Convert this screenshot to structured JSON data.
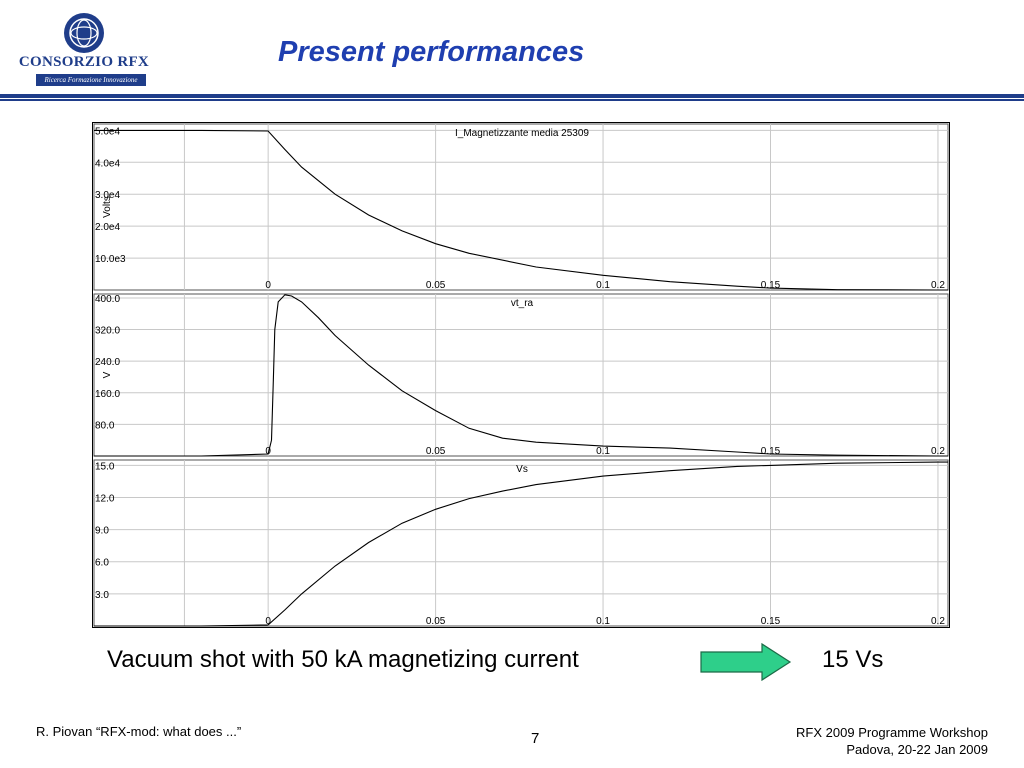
{
  "logo": {
    "name": "CONSORZIO RFX",
    "subtitle": "Ricerca Formazione Innovazione"
  },
  "slide": {
    "title": "Present performances",
    "caption": "Vacuum shot with 50 kA magnetizing current",
    "result": "15  Vs",
    "footer_left": "R. Piovan “RFX-mod: what does ...”",
    "page_number": "7",
    "footer_right_line1": "RFX 2009 Programme Workshop",
    "footer_right_line2": "Padova,  20-22 Jan 2009"
  },
  "colors": {
    "title": "#1f3fb0",
    "header_bar": "#1f3d8a",
    "arrow_fill": "#2ecf8a",
    "trace": "#000000",
    "grid": "#c8c8c8"
  },
  "chart_data": [
    {
      "type": "line",
      "title": "I_Magnetizzante media 25309",
      "ylabel": "Volts",
      "xlim": [
        -0.052,
        0.203
      ],
      "ylim": [
        0,
        52000
      ],
      "x_ticks": [
        0,
        0.05,
        0.1,
        0.15,
        0.2
      ],
      "x_tick_labels": [
        "0",
        "0.05",
        "0.1",
        "0.15",
        "0.2"
      ],
      "y_ticks": [
        10000,
        20000,
        30000,
        40000,
        50000
      ],
      "y_tick_labels": [
        "10.0e3",
        "2.0e4",
        "3.0e4",
        "4.0e4",
        "5.0e4"
      ],
      "grid": true,
      "x": [
        -0.052,
        -0.02,
        0,
        0.005,
        0.01,
        0.02,
        0.03,
        0.04,
        0.05,
        0.06,
        0.08,
        0.1,
        0.12,
        0.14,
        0.15,
        0.17,
        0.2,
        0.203
      ],
      "y": [
        50000,
        50000,
        49800,
        44000,
        38500,
        30000,
        23500,
        18500,
        14500,
        11500,
        7200,
        4600,
        2600,
        1200,
        600,
        100,
        0,
        0
      ]
    },
    {
      "type": "line",
      "title": "vt_ra",
      "ylabel": "V",
      "xlim": [
        -0.052,
        0.203
      ],
      "ylim": [
        0,
        410
      ],
      "x_ticks": [
        0,
        0.05,
        0.1,
        0.15,
        0.2
      ],
      "x_tick_labels": [
        "0",
        "0.05",
        "0.1",
        "0.15",
        "0.2"
      ],
      "y_ticks": [
        80,
        160,
        240,
        320,
        400
      ],
      "y_tick_labels": [
        "80.0",
        "160.0",
        "240.0",
        "320.0",
        "400.0"
      ],
      "grid": true,
      "x": [
        -0.052,
        -0.02,
        0,
        0.001,
        0.0015,
        0.002,
        0.003,
        0.005,
        0.007,
        0.01,
        0.015,
        0.02,
        0.03,
        0.04,
        0.05,
        0.06,
        0.07,
        0.08,
        0.1,
        0.12,
        0.14,
        0.15,
        0.17,
        0.2,
        0.203
      ],
      "y": [
        0,
        0,
        5,
        40,
        180,
        320,
        390,
        408,
        405,
        390,
        350,
        305,
        230,
        165,
        115,
        70,
        45,
        35,
        25,
        20,
        10,
        5,
        2,
        0,
        0
      ]
    },
    {
      "type": "line",
      "title": "Vs",
      "ylabel": "",
      "xlim": [
        -0.052,
        0.203
      ],
      "ylim": [
        0,
        15.5
      ],
      "x_ticks": [
        0,
        0.05,
        0.1,
        0.15,
        0.2
      ],
      "x_tick_labels": [
        "0",
        "0.05",
        "0.1",
        "0.15",
        "0.2"
      ],
      "y_ticks": [
        3,
        6,
        9,
        12,
        15
      ],
      "y_tick_labels": [
        "3.0",
        "6.0",
        "9.0",
        "12.0",
        "15.0"
      ],
      "grid": true,
      "x": [
        -0.052,
        -0.02,
        0,
        0.005,
        0.01,
        0.02,
        0.03,
        0.04,
        0.05,
        0.06,
        0.07,
        0.08,
        0.1,
        0.12,
        0.14,
        0.15,
        0.17,
        0.2,
        0.203
      ],
      "y": [
        0,
        0,
        0.1,
        1.5,
        3.0,
        5.6,
        7.8,
        9.6,
        10.9,
        11.9,
        12.6,
        13.2,
        14.0,
        14.5,
        14.9,
        15.0,
        15.2,
        15.3,
        15.3
      ]
    }
  ]
}
